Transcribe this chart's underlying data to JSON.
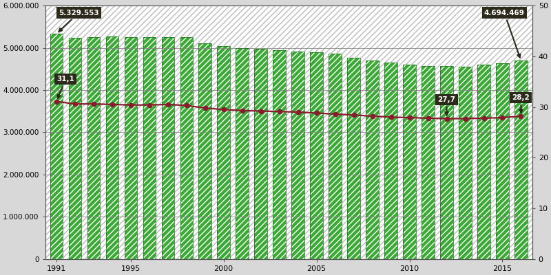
{
  "years": [
    1991,
    1992,
    1993,
    1994,
    1995,
    1996,
    1997,
    1998,
    1999,
    2000,
    2001,
    2002,
    2003,
    2004,
    2005,
    2006,
    2007,
    2008,
    2009,
    2010,
    2011,
    2012,
    2013,
    2014,
    2015,
    2016
  ],
  "bar_values": [
    5329553,
    5237000,
    5253000,
    5263000,
    5248000,
    5257000,
    5248000,
    5260000,
    5107000,
    5042000,
    5001000,
    4970000,
    4940000,
    4920000,
    4900000,
    4868000,
    4762000,
    4700000,
    4645000,
    4600000,
    4578000,
    4572000,
    4562000,
    4600000,
    4628000,
    4694469
  ],
  "line_values": [
    31.1,
    30.6,
    30.6,
    30.5,
    30.4,
    30.4,
    30.5,
    30.3,
    29.8,
    29.5,
    29.3,
    29.2,
    29.1,
    29.0,
    28.8,
    28.6,
    28.4,
    28.2,
    28.0,
    27.9,
    27.8,
    27.7,
    27.7,
    27.8,
    27.9,
    28.2
  ],
  "bar_color_face": "#3aaa35",
  "bar_color_edge": "#2d8a28",
  "line_color": "#8b1a2e",
  "bg_color": "#d8d8d8",
  "ylim_left": [
    0,
    6000000
  ],
  "ylim_right": [
    0,
    50
  ],
  "yticks_left": [
    0,
    1000000,
    2000000,
    3000000,
    4000000,
    5000000,
    6000000
  ],
  "ytick_labels_left": [
    "0",
    "1.000.000",
    "2.000.000",
    "3.000.000",
    "4.000.000",
    "5.000.000",
    "6.000.000"
  ],
  "yticks_right": [
    0,
    10,
    20,
    30,
    40,
    50
  ],
  "annotation_first_bar": "5.329.553",
  "annotation_last_bar": "4.694.469",
  "annotation_first_line": "31,1",
  "annotation_2012_line": "27,7",
  "annotation_last_line": "28,2",
  "xtick_years": [
    1991,
    1995,
    2000,
    2005,
    2010,
    2015
  ],
  "bar_width": 0.68
}
